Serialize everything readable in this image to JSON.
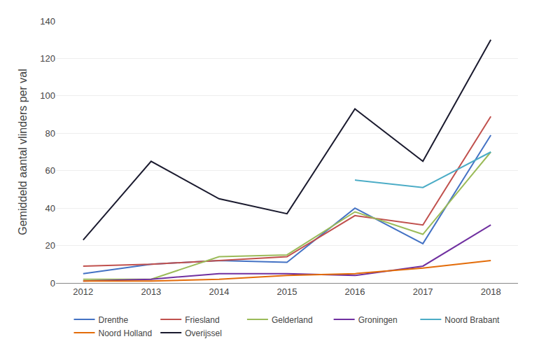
{
  "chart_data": {
    "type": "line",
    "ylabel": "Gemiddeld aantal vlinders per val",
    "x": [
      2012,
      2013,
      2014,
      2015,
      2016,
      2017,
      2018
    ],
    "series": [
      {
        "name": "Drenthe",
        "color": "#4472C4",
        "values": [
          5,
          10,
          12,
          11,
          40,
          21,
          79
        ]
      },
      {
        "name": "Friesland",
        "color": "#C0504D",
        "values": [
          9,
          10,
          12,
          14,
          36,
          31,
          89
        ]
      },
      {
        "name": "Gelderland",
        "color": "#9BBB59",
        "values": [
          2,
          2,
          14,
          15,
          38,
          26,
          70
        ]
      },
      {
        "name": "Groningen",
        "color": "#7030A0",
        "values": [
          1,
          2,
          5,
          5,
          4,
          9,
          31
        ]
      },
      {
        "name": "Noord Brabant",
        "color": "#4BACC6",
        "values": [
          null,
          null,
          null,
          null,
          55,
          51,
          70
        ]
      },
      {
        "name": "Noord Holland",
        "color": "#E36C09",
        "values": [
          1,
          1,
          2,
          4,
          5,
          8,
          12
        ]
      },
      {
        "name": "Overijssel",
        "color": "#1A1A2E",
        "values": [
          23,
          65,
          45,
          37,
          93,
          65,
          130
        ]
      }
    ],
    "xlim": [
      2011.6,
      2018.4
    ],
    "xticks": [
      2012,
      2013,
      2014,
      2015,
      2016,
      2017,
      2018
    ],
    "ylim": [
      0,
      140
    ],
    "yticks": [
      0,
      20,
      40,
      60,
      80,
      100,
      120,
      140
    ],
    "grid": true,
    "legend": "bottom"
  }
}
